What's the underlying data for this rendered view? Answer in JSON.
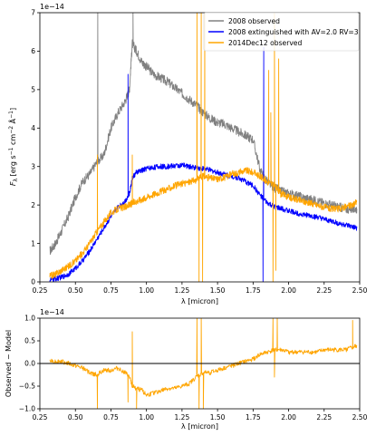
{
  "chart_data": [
    {
      "type": "line",
      "title": "",
      "xlabel": "λ [micron]",
      "ylabel_parts": [
        "F",
        "λ",
        " [erg s",
        "−1",
        " cm",
        "−2",
        " Å",
        "−1",
        "]"
      ],
      "offset_label": "1e−14",
      "xlim": [
        0.25,
        2.5
      ],
      "ylim": [
        0,
        7
      ],
      "xticks": [
        0.25,
        0.5,
        0.75,
        1.0,
        1.25,
        1.5,
        1.75,
        2.0,
        2.25,
        2.5
      ],
      "xtick_labels": [
        "0.25",
        "0.50",
        "0.75",
        "1.00",
        "1.25",
        "1.50",
        "1.75",
        "2.00",
        "2.25",
        "2.50"
      ],
      "yticks": [
        0,
        1,
        2,
        3,
        4,
        5,
        6,
        7
      ],
      "ytick_labels": [
        "0",
        "1",
        "2",
        "3",
        "4",
        "5",
        "6",
        "7"
      ],
      "grid": false,
      "legend_position": "top-right",
      "series": [
        {
          "name": "2008 observed",
          "color": "#808080",
          "noise": 0.12,
          "x": [
            0.32,
            0.36,
            0.4,
            0.45,
            0.5,
            0.55,
            0.6,
            0.65,
            0.7,
            0.75,
            0.8,
            0.85,
            0.88,
            0.9,
            0.93,
            0.97,
            1.0,
            1.05,
            1.1,
            1.15,
            1.2,
            1.25,
            1.3,
            1.35,
            1.4,
            1.45,
            1.5,
            1.55,
            1.6,
            1.65,
            1.7,
            1.75,
            1.8,
            1.85,
            1.9,
            1.95,
            2.0,
            2.05,
            2.1,
            2.15,
            2.2,
            2.25,
            2.3,
            2.35,
            2.4,
            2.45,
            2.48
          ],
          "y": [
            0.8,
            1.0,
            1.3,
            1.7,
            2.2,
            2.6,
            2.8,
            3.1,
            3.3,
            4.0,
            4.4,
            4.7,
            5.0,
            6.2,
            6.0,
            5.7,
            5.6,
            5.4,
            5.3,
            5.2,
            5.05,
            4.9,
            4.75,
            4.6,
            4.4,
            4.25,
            4.15,
            4.1,
            4.0,
            3.9,
            3.8,
            3.7,
            2.9,
            2.6,
            2.45,
            2.35,
            2.3,
            2.25,
            2.2,
            2.15,
            2.1,
            2.05,
            2.0,
            1.95,
            1.9,
            1.9,
            1.9
          ],
          "spikes": [
            {
              "x": 0.657,
              "y": 7.0
            },
            {
              "x": 0.905,
              "y": 7.0
            }
          ]
        },
        {
          "name": "2008 extinguished with AV=2.0 RV=3",
          "color": "#0000ff",
          "noise": 0.07,
          "x": [
            0.32,
            0.36,
            0.4,
            0.45,
            0.5,
            0.55,
            0.6,
            0.65,
            0.7,
            0.75,
            0.8,
            0.85,
            0.88,
            0.9,
            0.93,
            0.97,
            1.0,
            1.05,
            1.1,
            1.15,
            1.2,
            1.25,
            1.3,
            1.35,
            1.4,
            1.45,
            1.5,
            1.55,
            1.6,
            1.65,
            1.7,
            1.75,
            1.8,
            1.85,
            1.9,
            1.95,
            2.0,
            2.05,
            2.1,
            2.15,
            2.2,
            2.25,
            2.3,
            2.35,
            2.4,
            2.45,
            2.48
          ],
          "y": [
            0.05,
            0.08,
            0.12,
            0.2,
            0.35,
            0.55,
            0.8,
            1.1,
            1.4,
            1.7,
            1.95,
            2.1,
            2.3,
            2.7,
            2.85,
            2.9,
            2.95,
            2.98,
            3.0,
            3.0,
            3.02,
            3.03,
            3.0,
            2.97,
            2.95,
            2.9,
            2.85,
            2.8,
            2.75,
            2.7,
            2.6,
            2.5,
            2.25,
            2.05,
            1.95,
            1.9,
            1.85,
            1.8,
            1.75,
            1.72,
            1.68,
            1.62,
            1.58,
            1.52,
            1.48,
            1.42,
            1.4
          ],
          "spikes": [
            {
              "x": 0.87,
              "y": 5.4
            },
            {
              "x": 1.82,
              "y": 0.0
            },
            {
              "x": 1.825,
              "y": 6.1
            }
          ]
        },
        {
          "name": "2014Dec12 observed",
          "color": "#ffa500",
          "noise": 0.09,
          "x": [
            0.32,
            0.36,
            0.4,
            0.45,
            0.5,
            0.55,
            0.6,
            0.65,
            0.7,
            0.75,
            0.8,
            0.85,
            0.88,
            0.9,
            0.93,
            0.97,
            1.0,
            1.05,
            1.1,
            1.15,
            1.2,
            1.25,
            1.3,
            1.35,
            1.4,
            1.45,
            1.5,
            1.55,
            1.6,
            1.65,
            1.7,
            1.75,
            1.8,
            1.85,
            1.9,
            1.95,
            2.0,
            2.05,
            2.1,
            2.15,
            2.2,
            2.25,
            2.3,
            2.35,
            2.4,
            2.45,
            2.48
          ],
          "y": [
            0.15,
            0.2,
            0.3,
            0.4,
            0.55,
            0.75,
            1.0,
            1.3,
            1.55,
            1.8,
            1.9,
            1.95,
            2.0,
            2.05,
            2.1,
            2.15,
            2.2,
            2.28,
            2.35,
            2.42,
            2.5,
            2.55,
            2.6,
            2.65,
            2.75,
            2.7,
            2.68,
            2.72,
            2.8,
            2.85,
            2.9,
            2.85,
            2.75,
            2.6,
            2.5,
            2.3,
            2.2,
            2.15,
            2.1,
            2.05,
            2.0,
            1.95,
            1.9,
            1.9,
            1.95,
            2.0,
            2.1
          ],
          "spikes": [
            {
              "x": 0.655,
              "y": 3.3
            },
            {
              "x": 0.9,
              "y": 3.3
            },
            {
              "x": 1.355,
              "y": 7.0
            },
            {
              "x": 1.37,
              "y": 0.0
            },
            {
              "x": 1.385,
              "y": 7.0
            },
            {
              "x": 1.395,
              "y": 0.0
            },
            {
              "x": 1.41,
              "y": 7.0
            },
            {
              "x": 1.86,
              "y": 5.5
            },
            {
              "x": 1.875,
              "y": 4.4
            },
            {
              "x": 1.89,
              "y": 0.0
            },
            {
              "x": 1.9,
              "y": 7.0
            },
            {
              "x": 1.91,
              "y": 0.3
            },
            {
              "x": 1.93,
              "y": 5.8
            },
            {
              "x": 1.945,
              "y": 2.2
            }
          ]
        }
      ]
    },
    {
      "type": "line",
      "title": "",
      "xlabel": "λ [micron]",
      "ylabel": "Observed − Model",
      "offset_label": "1e−14",
      "xlim": [
        0.25,
        2.5
      ],
      "ylim": [
        -1.0,
        1.0
      ],
      "xticks": [
        0.25,
        0.5,
        0.75,
        1.0,
        1.25,
        1.5,
        1.75,
        2.0,
        2.25,
        2.5
      ],
      "xtick_labels": [
        "0.25",
        "0.50",
        "0.75",
        "1.00",
        "1.25",
        "1.50",
        "1.75",
        "2.00",
        "2.25",
        "2.50"
      ],
      "yticks": [
        -1.0,
        -0.5,
        0.0,
        0.5,
        1.0
      ],
      "ytick_labels": [
        "−1.0",
        "−0.5",
        "0.0",
        "0.5",
        "1.0"
      ],
      "grid": false,
      "reference_line": {
        "y": 0,
        "color": "#000000"
      },
      "series": [
        {
          "color": "#ffa500",
          "noise": 0.05,
          "x": [
            0.32,
            0.36,
            0.4,
            0.45,
            0.5,
            0.55,
            0.6,
            0.65,
            0.7,
            0.75,
            0.8,
            0.85,
            0.88,
            0.9,
            0.93,
            0.97,
            1.0,
            1.05,
            1.1,
            1.15,
            1.2,
            1.25,
            1.3,
            1.35,
            1.4,
            1.45,
            1.5,
            1.55,
            1.6,
            1.65,
            1.7,
            1.75,
            1.8,
            1.85,
            1.9,
            1.95,
            2.0,
            2.05,
            2.1,
            2.15,
            2.2,
            2.25,
            2.3,
            2.35,
            2.4,
            2.45,
            2.48
          ],
          "y": [
            0.05,
            0.05,
            0.05,
            0.0,
            -0.05,
            -0.1,
            -0.2,
            -0.25,
            -0.15,
            -0.15,
            -0.1,
            -0.2,
            -0.3,
            -0.5,
            -0.55,
            -0.6,
            -0.7,
            -0.65,
            -0.6,
            -0.55,
            -0.55,
            -0.5,
            -0.45,
            -0.3,
            -0.2,
            -0.2,
            -0.15,
            -0.1,
            -0.05,
            0.0,
            0.05,
            0.1,
            0.2,
            0.25,
            0.3,
            0.3,
            0.25,
            0.25,
            0.25,
            0.25,
            0.25,
            0.3,
            0.3,
            0.3,
            0.3,
            0.35,
            0.4
          ],
          "spikes": [
            {
              "x": 0.655,
              "y": -1.0
            },
            {
              "x": 0.87,
              "y": -0.85
            },
            {
              "x": 0.9,
              "y": 0.7
            },
            {
              "x": 0.93,
              "y": -1.0
            },
            {
              "x": 1.355,
              "y": 1.0
            },
            {
              "x": 1.37,
              "y": -1.0
            },
            {
              "x": 1.385,
              "y": 1.0
            },
            {
              "x": 1.4,
              "y": -1.0
            },
            {
              "x": 1.89,
              "y": 1.0
            },
            {
              "x": 1.9,
              "y": -0.3
            },
            {
              "x": 1.92,
              "y": 1.0
            },
            {
              "x": 2.45,
              "y": 0.95
            }
          ]
        }
      ]
    }
  ]
}
